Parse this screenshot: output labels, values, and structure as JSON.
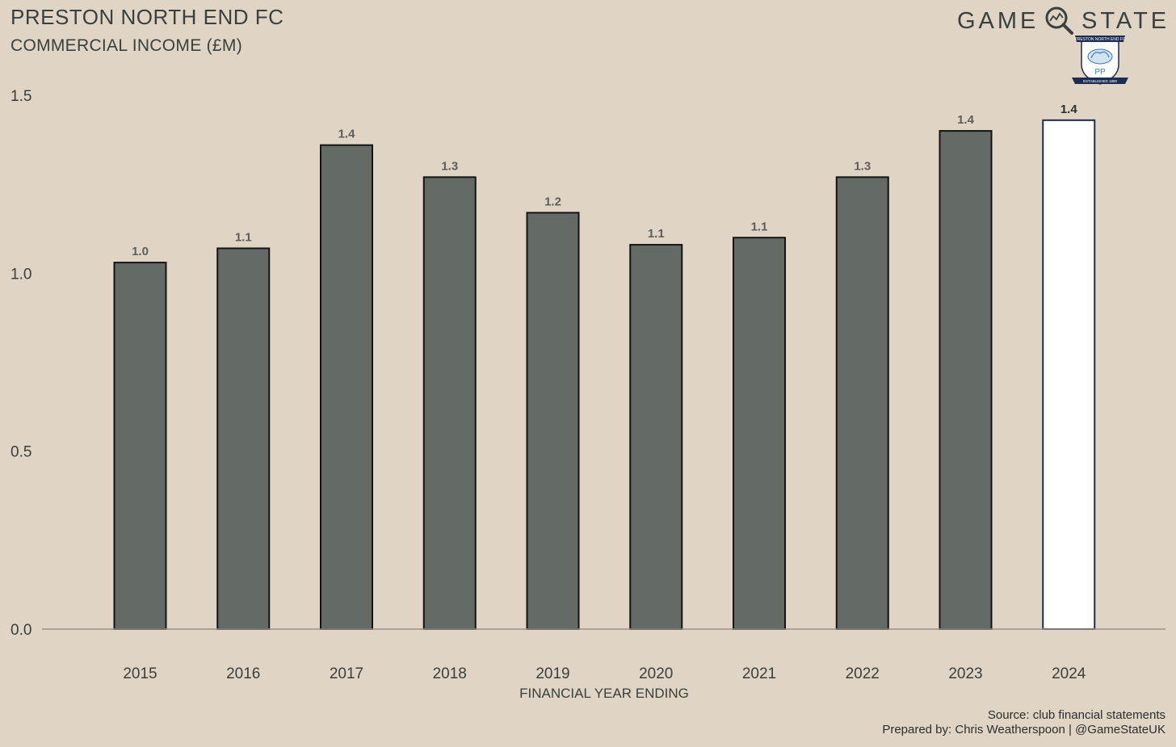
{
  "header": {
    "title": "PRESTON NORTH END FC",
    "subtitle": "COMMERCIAL INCOME (£M)"
  },
  "brand": {
    "word_left": "GAME",
    "word_right": "STATE",
    "icon": "magnifier-icon"
  },
  "crest": {
    "icon": "club-crest-icon",
    "name": "PRESTON NORTH END FC",
    "initials": "PP",
    "established": "ESTABLISHED 1880"
  },
  "footer": {
    "source": "Source: club financial statements",
    "prepared_by": "Prepared by: Chris Weatherspoon | @GameStateUK"
  },
  "colors": {
    "background": "#e0d4c4",
    "bar": "#646a66",
    "highlight_bar": "#ffffff",
    "highlight_outline": "#1c2c52",
    "text": "#39403d"
  },
  "chart_data": {
    "type": "bar",
    "title": "PRESTON NORTH END FC",
    "subtitle": "COMMERCIAL INCOME (£M)",
    "xlabel": "FINANCIAL YEAR ENDING",
    "ylabel": "",
    "categories": [
      "2015",
      "2016",
      "2017",
      "2018",
      "2019",
      "2020",
      "2021",
      "2022",
      "2023",
      "2024"
    ],
    "values": [
      1.03,
      1.07,
      1.36,
      1.27,
      1.17,
      1.08,
      1.1,
      1.27,
      1.4,
      1.43
    ],
    "data_labels": [
      "1.0",
      "1.1",
      "1.4",
      "1.3",
      "1.2",
      "1.1",
      "1.1",
      "1.3",
      "1.4",
      "1.4"
    ],
    "highlight_index": 9,
    "ylim": [
      0,
      1.5
    ],
    "yticks": [
      0.0,
      0.5,
      1.0,
      1.5
    ],
    "ytick_labels": [
      "0.0",
      "0.5",
      "1.0",
      "1.5"
    ],
    "grid": false,
    "legend": "none"
  }
}
